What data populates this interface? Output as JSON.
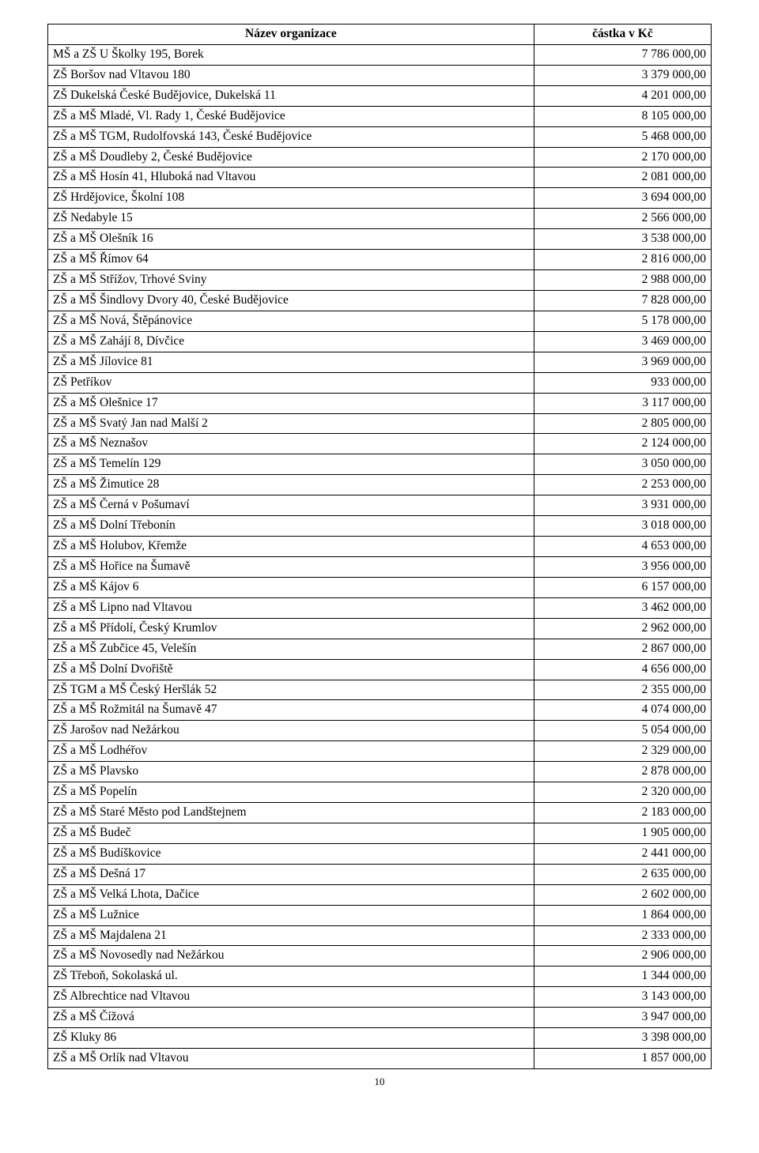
{
  "header": {
    "name": "Název organizace",
    "amount": "částka v Kč"
  },
  "rows": [
    {
      "name": "MŠ a ZŠ U Školky 195, Borek",
      "amount": "7 786 000,00"
    },
    {
      "name": "ZŠ Boršov nad Vltavou 180",
      "amount": "3 379 000,00"
    },
    {
      "name": "ZŠ Dukelská České Budějovice, Dukelská 11",
      "amount": "4 201 000,00"
    },
    {
      "name": "ZŠ a MŠ Mladé, Vl. Rady 1, České Budějovice",
      "amount": "8 105 000,00"
    },
    {
      "name": "ZŠ a MŠ TGM, Rudolfovská 143, České Budějovice",
      "amount": "5 468 000,00"
    },
    {
      "name": "ZŠ a MŠ Doudleby 2, České Budějovice",
      "amount": "2 170 000,00"
    },
    {
      "name": "ZŠ a MŠ Hosín 41, Hluboká nad Vltavou",
      "amount": "2 081 000,00"
    },
    {
      "name": "ZŠ Hrdějovice, Školní 108",
      "amount": "3 694 000,00"
    },
    {
      "name": "ZŠ Nedabyle 15",
      "amount": "2 566 000,00"
    },
    {
      "name": "ZŠ a MŠ Olešník 16",
      "amount": "3 538 000,00"
    },
    {
      "name": "ZŠ a MŠ Římov 64",
      "amount": "2 816 000,00"
    },
    {
      "name": "ZŠ a MŠ Střížov, Trhové Sviny",
      "amount": "2 988 000,00"
    },
    {
      "name": "ZŠ a MŠ Šindlovy Dvory 40, České Budějovice",
      "amount": "7 828 000,00"
    },
    {
      "name": "ZŠ a MŠ Nová, Štěpánovice",
      "amount": "5 178 000,00"
    },
    {
      "name": "ZŠ a MŠ Zahájí 8, Dívčice",
      "amount": "3 469 000,00"
    },
    {
      "name": "ZŠ a MŠ Jílovice 81",
      "amount": "3 969 000,00"
    },
    {
      "name": "ZŠ Petříkov",
      "amount": "933 000,00"
    },
    {
      "name": "ZŠ a MŠ Olešnice 17",
      "amount": "3 117 000,00"
    },
    {
      "name": "ZŠ a MŠ Svatý Jan nad Malší 2",
      "amount": "2 805 000,00"
    },
    {
      "name": "ZŠ a MŠ Neznašov",
      "amount": "2 124 000,00"
    },
    {
      "name": "ZŠ a MŠ Temelín 129",
      "amount": "3 050 000,00"
    },
    {
      "name": "ZŠ a MŠ Žimutice 28",
      "amount": "2 253 000,00"
    },
    {
      "name": "ZŠ a MŠ Černá v Pošumaví",
      "amount": "3 931 000,00"
    },
    {
      "name": "ZŠ a MŠ Dolní Třebonín",
      "amount": "3 018 000,00"
    },
    {
      "name": "ZŠ a MŠ Holubov, Křemže",
      "amount": "4 653 000,00"
    },
    {
      "name": "ZŠ a MŠ Hořice na Šumavě",
      "amount": "3 956 000,00"
    },
    {
      "name": "ZŠ a MŠ Kájov 6",
      "amount": "6 157 000,00"
    },
    {
      "name": "ZŠ a MŠ Lipno nad Vltavou",
      "amount": "3 462 000,00"
    },
    {
      "name": "ZŠ a MŠ Přídolí, Český Krumlov",
      "amount": "2 962 000,00"
    },
    {
      "name": "ZŠ a MŠ Zubčice 45, Velešín",
      "amount": "2 867 000,00"
    },
    {
      "name": "ZŠ a MŠ Dolní Dvořiště",
      "amount": "4 656 000,00"
    },
    {
      "name": "ZŠ TGM a MŠ Český Heršlák 52",
      "amount": "2 355 000,00"
    },
    {
      "name": "ZŠ a MŠ Rožmitál na Šumavě 47",
      "amount": "4 074 000,00"
    },
    {
      "name": "ZŠ Jarošov nad Nežárkou",
      "amount": "5 054 000,00"
    },
    {
      "name": "ZŠ a MŠ Lodhéřov",
      "amount": "2 329 000,00"
    },
    {
      "name": "ZŠ a MŠ Plavsko",
      "amount": "2 878 000,00"
    },
    {
      "name": "ZŠ a MŠ Popelín",
      "amount": "2 320 000,00"
    },
    {
      "name": "ZŠ a MŠ Staré Město pod Landštejnem",
      "amount": "2 183 000,00"
    },
    {
      "name": "ZŠ a MŠ Budeč",
      "amount": "1 905 000,00"
    },
    {
      "name": "ZŠ a MŠ Budíškovice",
      "amount": "2 441 000,00"
    },
    {
      "name": "ZŠ a MŠ Dešná 17",
      "amount": "2 635 000,00"
    },
    {
      "name": "ZŠ a MŠ Velká Lhota, Dačice",
      "amount": "2 602 000,00"
    },
    {
      "name": "ZŠ a MŠ Lužnice",
      "amount": "1 864 000,00"
    },
    {
      "name": "ZŠ a MŠ Majdalena 21",
      "amount": "2 333 000,00"
    },
    {
      "name": "ZŠ a MŠ Novosedly nad Nežárkou",
      "amount": "2 906 000,00"
    },
    {
      "name": "ZŠ Třeboň, Sokolaská ul.",
      "amount": "1 344 000,00"
    },
    {
      "name": "ZŠ Albrechtice nad Vltavou",
      "amount": "3 143 000,00"
    },
    {
      "name": "ZŠ a MŠ Čížová",
      "amount": "3 947 000,00"
    },
    {
      "name": "ZŠ Kluky 86",
      "amount": "3 398 000,00"
    },
    {
      "name": "ZŠ a MŠ Orlík nad Vltavou",
      "amount": "1 857 000,00"
    }
  ],
  "pageNumber": "10",
  "style": {
    "type": "table",
    "columns": [
      {
        "key": "name",
        "align": "left",
        "width_pct": 74
      },
      {
        "key": "amount",
        "align": "right",
        "width_pct": 26
      }
    ],
    "font_family": "Times New Roman",
    "font_size_pt": 12,
    "header_font_weight": "bold",
    "border_color": "#000000",
    "background_color": "#ffffff",
    "text_color": "#000000",
    "row_line_height": 1.35
  }
}
